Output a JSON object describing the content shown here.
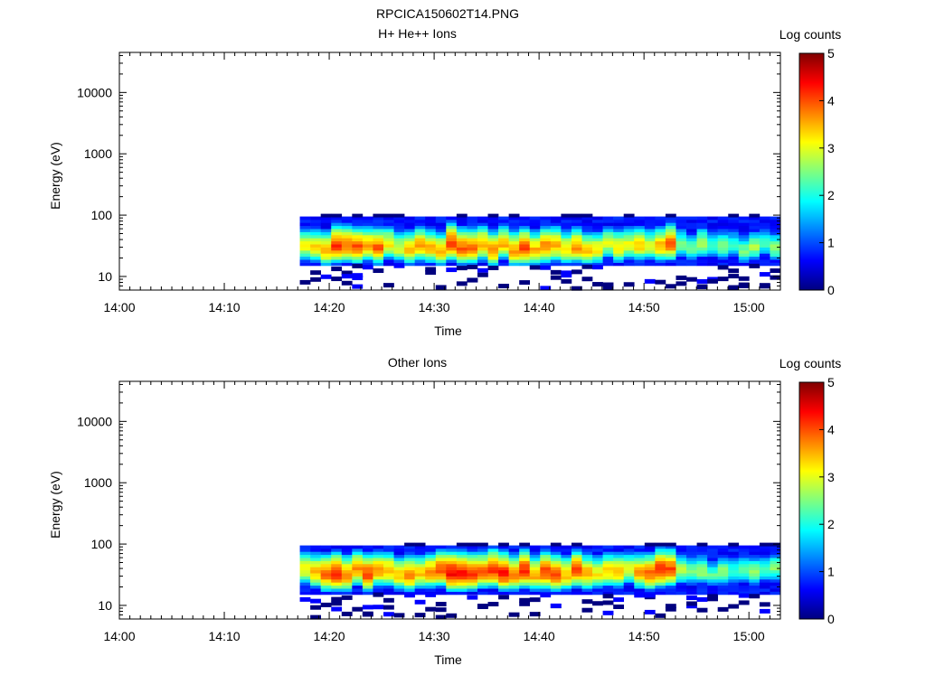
{
  "figure_title": "RPCICA150602T14.PNG",
  "colormap_stops": [
    "#00007f",
    "#0000ff",
    "#007fff",
    "#00ffff",
    "#7fff7f",
    "#ffff00",
    "#ff7f00",
    "#ff0000",
    "#7f0000"
  ],
  "chart_data": [
    {
      "type": "heatmap",
      "title": "H+ He++ Ions",
      "xlabel": "Time",
      "ylabel": "Energy (eV)",
      "colorbar_label": "Log counts",
      "colorbar_ticks": [
        "0",
        "1",
        "2",
        "3",
        "4",
        "5"
      ],
      "color_range": [
        0,
        5
      ],
      "x_ticks": [
        "14:00",
        "14:10",
        "14:20",
        "14:30",
        "14:40",
        "14:50",
        "15:00"
      ],
      "x_range_min": [
        0,
        63
      ],
      "y_ticks": [
        "10",
        "100",
        "1000",
        "10000"
      ],
      "y_scale": "log",
      "y_range": [
        6,
        45000
      ],
      "grid": false,
      "data_start_min": 17.2,
      "data_end_min": 63,
      "energy_low_eV": 15,
      "energy_high_eV": 95,
      "peak_energy_eV": 30,
      "peak_log_counts": [
        3.1,
        3.3,
        3.6,
        4.1,
        3.9,
        4.0,
        3.6,
        3.9,
        3.2,
        3.0,
        3.4,
        3.6,
        3.5,
        3.5,
        4.1,
        3.9,
        3.8,
        3.6,
        3.7,
        3.5,
        3.6,
        4.0,
        3.5,
        3.8,
        3.6,
        3.3,
        3.7,
        3.4,
        3.2,
        3.0,
        3.3,
        3.1,
        3.4,
        3.0,
        3.5,
        3.9,
        2.6,
        2.4,
        2.8,
        2.3,
        2.6,
        2.2,
        2.5,
        2.7,
        2.3,
        2.6
      ]
    },
    {
      "type": "heatmap",
      "title": "Other Ions",
      "xlabel": "Time",
      "ylabel": "Energy (eV)",
      "colorbar_label": "Log counts",
      "colorbar_ticks": [
        "0",
        "1",
        "2",
        "3",
        "4",
        "5"
      ],
      "color_range": [
        0,
        5
      ],
      "x_ticks": [
        "14:00",
        "14:10",
        "14:20",
        "14:30",
        "14:40",
        "14:50",
        "15:00"
      ],
      "x_range_min": [
        0,
        63
      ],
      "y_ticks": [
        "10",
        "100",
        "1000",
        "10000"
      ],
      "y_scale": "log",
      "y_range": [
        6,
        45000
      ],
      "grid": false,
      "data_start_min": 17.2,
      "data_end_min": 63,
      "energy_low_eV": 15,
      "energy_high_eV": 95,
      "peak_energy_eV": 35,
      "peak_log_counts": [
        3.2,
        3.5,
        3.9,
        4.3,
        3.8,
        3.7,
        4.1,
        3.6,
        3.5,
        3.4,
        3.8,
        3.4,
        3.7,
        4.0,
        4.4,
        4.3,
        4.1,
        3.9,
        4.2,
        4.3,
        3.8,
        4.2,
        3.6,
        4.1,
        4.0,
        3.5,
        4.0,
        3.6,
        3.2,
        3.4,
        3.5,
        3.1,
        3.6,
        3.9,
        4.2,
        4.0,
        2.8,
        2.5,
        2.7,
        2.3,
        2.6,
        2.2,
        2.4,
        2.6,
        2.3,
        2.5
      ]
    }
  ]
}
